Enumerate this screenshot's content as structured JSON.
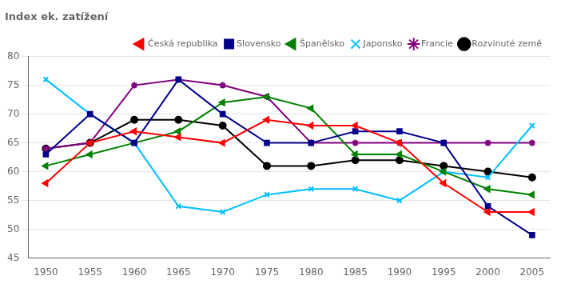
{
  "chart_data": {
    "type": "line",
    "title": "Index ek. zatížení",
    "x": [
      1950,
      1955,
      1960,
      1965,
      1970,
      1975,
      1980,
      1985,
      1990,
      1995,
      2000,
      2005
    ],
    "series": [
      {
        "name": "Česká republika",
        "color": "#ff0000",
        "marker": "triangle-left",
        "values": [
          58,
          65,
          67,
          66,
          65,
          69,
          68,
          68,
          65,
          58,
          53,
          53
        ]
      },
      {
        "name": "Slovensko",
        "color": "#00008b",
        "marker": "square",
        "values": [
          63,
          70,
          65,
          76,
          70,
          65,
          65,
          67,
          67,
          65,
          54,
          49
        ]
      },
      {
        "name": "Španělsko",
        "color": "#008000",
        "marker": "triangle-left",
        "values": [
          61,
          63,
          65,
          67,
          72,
          73,
          71,
          63,
          63,
          60,
          57,
          56
        ]
      },
      {
        "name": "Japonsko",
        "color": "#00bfff",
        "marker": "x",
        "values": [
          76,
          70,
          65,
          54,
          53,
          56,
          57,
          57,
          55,
          60,
          59,
          68
        ]
      },
      {
        "name": "Francie",
        "color": "#800080",
        "marker": "star",
        "values": [
          64,
          65,
          75,
          76,
          75,
          73,
          65,
          65,
          65,
          65,
          65,
          65
        ]
      },
      {
        "name": "Rozvinuté země",
        "color": "#000000",
        "marker": "circle",
        "values": [
          64,
          65,
          69,
          69,
          68,
          61,
          61,
          62,
          62,
          61,
          60,
          59
        ]
      }
    ],
    "xlim": [
      1948,
      2007
    ],
    "xticks": [
      1950,
      1955,
      1960,
      1965,
      1970,
      1975,
      1980,
      1985,
      1990,
      1995,
      2000,
      2005
    ],
    "ylim": [
      45,
      80
    ],
    "yticks": [
      45,
      50,
      55,
      60,
      65,
      70,
      75,
      80
    ],
    "grid": "y",
    "legend": "upper right"
  }
}
